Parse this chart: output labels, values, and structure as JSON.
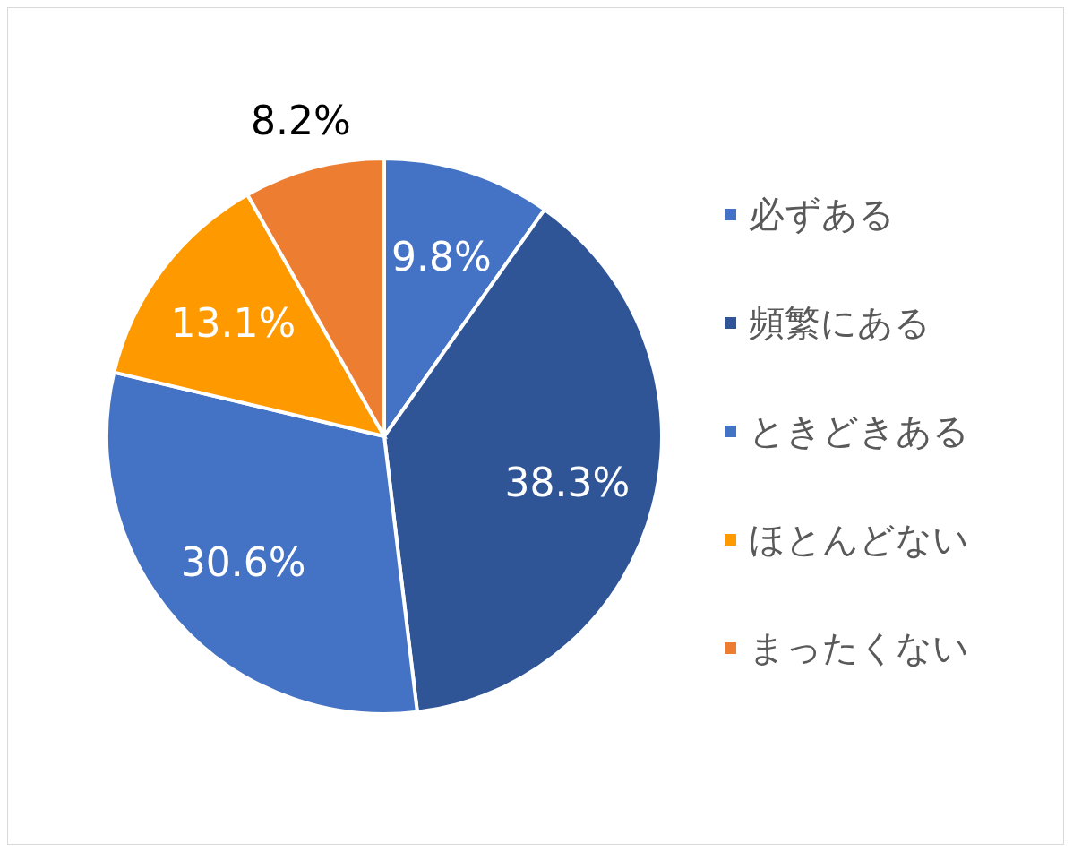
{
  "chart_data": {
    "type": "pie",
    "categories": [
      "必ずある",
      "頻繁にある",
      "ときどきある",
      "ほとんどない",
      "まったくない"
    ],
    "values": [
      9.8,
      38.3,
      30.6,
      13.1,
      8.2
    ],
    "colors": [
      "#4472c4",
      "#2f5597",
      "#4472c4",
      "#ff9900",
      "#ed7d31"
    ],
    "value_labels": [
      "9.8%",
      "38.3%",
      "30.6%",
      "13.1%",
      "8.2%"
    ],
    "legend": "right"
  }
}
